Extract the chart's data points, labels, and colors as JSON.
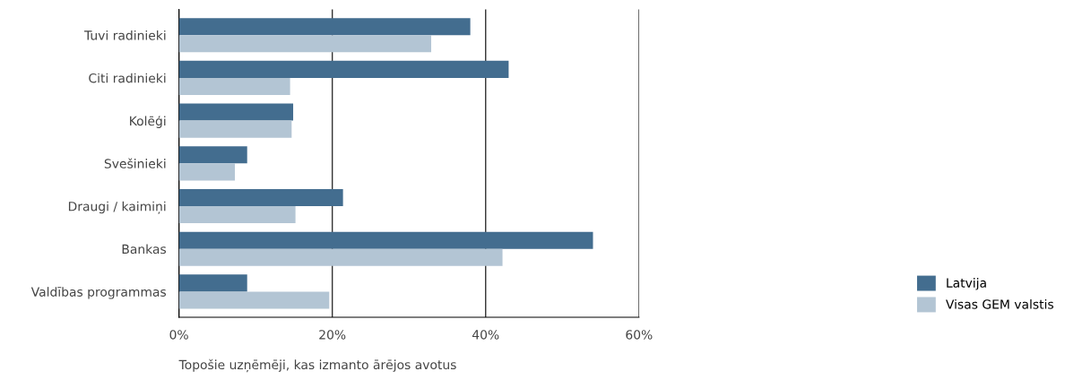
{
  "chart_data": {
    "type": "bar",
    "orientation": "horizontal",
    "xlabel": "Topošie uzņēmēji, kas izmanto ārējos avotus",
    "categories": [
      "Tuvi radinieki",
      "Citi radinieki",
      "Kolēģi",
      "Svešinieki",
      "Draugi / kaimiņi",
      "Bankas",
      "Valdības programmas"
    ],
    "series": [
      {
        "name": "Latvija",
        "color": "#436d8f",
        "values": [
          38.0,
          43.0,
          14.9,
          8.9,
          21.4,
          54.0,
          8.9
        ]
      },
      {
        "name": "Visas GEM valstis",
        "color": "#b3c5d4",
        "values": [
          32.9,
          14.5,
          14.7,
          7.3,
          15.2,
          42.2,
          19.6
        ]
      }
    ],
    "xlim": [
      0,
      60
    ],
    "xticks": [
      {
        "value": 0,
        "label": "0%"
      },
      {
        "value": 20,
        "label": "20%"
      },
      {
        "value": 40,
        "label": "40%"
      },
      {
        "value": 60,
        "label": "60%"
      }
    ],
    "grid": "x",
    "legend": "bottom right"
  }
}
